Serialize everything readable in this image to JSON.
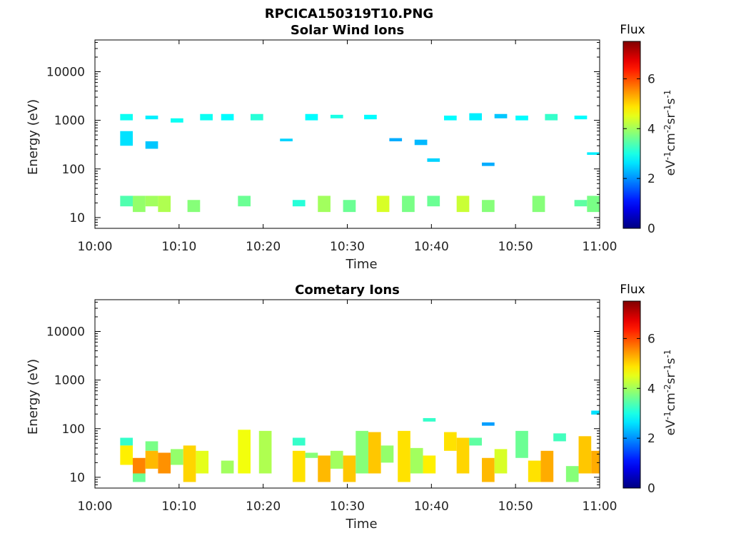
{
  "figure": {
    "title": "RPCICA150319T10.PNG"
  },
  "colorbar": {
    "label": "Flux",
    "unit_parts": [
      "eV",
      "-1",
      "cm",
      "-2",
      "sr",
      "-1",
      "s",
      "-1"
    ],
    "range": [
      0,
      7.5
    ],
    "ticks": [
      0,
      2,
      4,
      6
    ],
    "colormap": "jet"
  },
  "chart_data": [
    {
      "type": "heatmap",
      "title": "Solar Wind Ions",
      "xlabel": "Time",
      "ylabel": "Energy (eV)",
      "xlim": [
        "10:00",
        "11:00"
      ],
      "xticks": [
        "10:00",
        "10:10",
        "10:20",
        "10:30",
        "10:40",
        "10:50",
        "11:00"
      ],
      "ylim": [
        6,
        45000
      ],
      "yscale": "log",
      "yticks": [
        10,
        100,
        1000,
        10000
      ],
      "cells": [
        {
          "t": [
            "10:03",
            "10:04.5"
          ],
          "e": [
            1000,
            1350
          ],
          "v": 2.9
        },
        {
          "t": [
            "10:03",
            "10:04.5"
          ],
          "e": [
            300,
            600
          ],
          "v": 2.6
        },
        {
          "t": [
            "10:03",
            "10:04.5"
          ],
          "e": [
            17,
            28
          ],
          "v": 3.4
        },
        {
          "t": [
            "10:04.5",
            "10:06"
          ],
          "e": [
            13,
            28
          ],
          "v": 3.9
        },
        {
          "t": [
            "10:06",
            "10:07.5"
          ],
          "e": [
            1050,
            1250
          ],
          "v": 2.7
        },
        {
          "t": [
            "10:06",
            "10:07.5"
          ],
          "e": [
            260,
            370
          ],
          "v": 2.4
        },
        {
          "t": [
            "10:06",
            "10:07.5"
          ],
          "e": [
            17,
            28
          ],
          "v": 4.0
        },
        {
          "t": [
            "10:07.5",
            "10:09"
          ],
          "e": [
            13,
            28
          ],
          "v": 4.1
        },
        {
          "t": [
            "10:09",
            "10:10.5"
          ],
          "e": [
            900,
            1100
          ],
          "v": 2.9
        },
        {
          "t": [
            "10:11",
            "10:12.5"
          ],
          "e": [
            13,
            23
          ],
          "v": 3.8
        },
        {
          "t": [
            "10:12.5",
            "10:14"
          ],
          "e": [
            1000,
            1350
          ],
          "v": 2.9
        },
        {
          "t": [
            "10:15",
            "10:16.5"
          ],
          "e": [
            1000,
            1350
          ],
          "v": 2.8
        },
        {
          "t": [
            "10:17",
            "10:18.5"
          ],
          "e": [
            17,
            28
          ],
          "v": 3.6
        },
        {
          "t": [
            "10:18.5",
            "10:20"
          ],
          "e": [
            1000,
            1350
          ],
          "v": 3.1
        },
        {
          "t": [
            "10:22",
            "10:23.5"
          ],
          "e": [
            370,
            420
          ],
          "v": 2.5
        },
        {
          "t": [
            "10:23.5",
            "10:25"
          ],
          "e": [
            17,
            23
          ],
          "v": 3.1
        },
        {
          "t": [
            "10:25",
            "10:26.5"
          ],
          "e": [
            1000,
            1350
          ],
          "v": 2.8
        },
        {
          "t": [
            "10:26.5",
            "10:28"
          ],
          "e": [
            13,
            28
          ],
          "v": 4.0
        },
        {
          "t": [
            "10:28",
            "10:29.5"
          ],
          "e": [
            1100,
            1300
          ],
          "v": 3.0
        },
        {
          "t": [
            "10:29.5",
            "10:31"
          ],
          "e": [
            13,
            23
          ],
          "v": 3.6
        },
        {
          "t": [
            "10:32",
            "10:33.5"
          ],
          "e": [
            1050,
            1300
          ],
          "v": 2.8
        },
        {
          "t": [
            "10:33.5",
            "10:35"
          ],
          "e": [
            13,
            28
          ],
          "v": 4.4
        },
        {
          "t": [
            "10:35",
            "10:36.5"
          ],
          "e": [
            370,
            430
          ],
          "v": 2.2
        },
        {
          "t": [
            "10:36.5",
            "10:38"
          ],
          "e": [
            13,
            28
          ],
          "v": 3.7
        },
        {
          "t": [
            "10:38",
            "10:39.5"
          ],
          "e": [
            310,
            400
          ],
          "v": 2.3
        },
        {
          "t": [
            "10:39.5",
            "10:41"
          ],
          "e": [
            140,
            165
          ],
          "v": 2.5
        },
        {
          "t": [
            "10:39.5",
            "10:41"
          ],
          "e": [
            17,
            28
          ],
          "v": 3.6
        },
        {
          "t": [
            "10:41.5",
            "10:43"
          ],
          "e": [
            1000,
            1250
          ],
          "v": 2.8
        },
        {
          "t": [
            "10:43",
            "10:44.5"
          ],
          "e": [
            13,
            28
          ],
          "v": 4.3
        },
        {
          "t": [
            "10:44.5",
            "10:46"
          ],
          "e": [
            1000,
            1400
          ],
          "v": 2.7
        },
        {
          "t": [
            "10:46",
            "10:47.5"
          ],
          "e": [
            115,
            135
          ],
          "v": 2.2
        },
        {
          "t": [
            "10:46",
            "10:47.5"
          ],
          "e": [
            13,
            23
          ],
          "v": 3.8
        },
        {
          "t": [
            "10:47.5",
            "10:49"
          ],
          "e": [
            1100,
            1350
          ],
          "v": 2.4
        },
        {
          "t": [
            "10:50",
            "10:51.5"
          ],
          "e": [
            1000,
            1250
          ],
          "v": 2.8
        },
        {
          "t": [
            "10:52",
            "10:53.5"
          ],
          "e": [
            13,
            28
          ],
          "v": 3.8
        },
        {
          "t": [
            "10:53.5",
            "10:55"
          ],
          "e": [
            1000,
            1350
          ],
          "v": 3.2
        },
        {
          "t": [
            "10:57",
            "10:58.5"
          ],
          "e": [
            1050,
            1250
          ],
          "v": 2.8
        },
        {
          "t": [
            "10:57",
            "10:58.5"
          ],
          "e": [
            17,
            23
          ],
          "v": 3.5
        },
        {
          "t": [
            "10:58.5",
            "11:00"
          ],
          "e": [
            195,
            220
          ],
          "v": 2.7
        },
        {
          "t": [
            "10:58.5",
            "11:00"
          ],
          "e": [
            13,
            28
          ],
          "v": 3.7
        }
      ]
    },
    {
      "type": "heatmap",
      "title": "Cometary Ions",
      "xlabel": "Time",
      "ylabel": "Energy (eV)",
      "xlim": [
        "10:00",
        "11:00"
      ],
      "xticks": [
        "10:00",
        "10:10",
        "10:20",
        "10:30",
        "10:40",
        "10:50",
        "11:00"
      ],
      "ylim": [
        6,
        45000
      ],
      "yscale": "log",
      "yticks": [
        10,
        100,
        1000,
        10000
      ],
      "cells": [
        {
          "t": [
            "10:03",
            "10:04.5"
          ],
          "e": [
            45,
            65
          ],
          "v": 3.2
        },
        {
          "t": [
            "10:03",
            "10:04.5"
          ],
          "e": [
            18,
            45
          ],
          "v": 4.8
        },
        {
          "t": [
            "10:04.5",
            "10:06"
          ],
          "e": [
            8,
            12
          ],
          "v": 3.6
        },
        {
          "t": [
            "10:04.5",
            "10:06"
          ],
          "e": [
            12,
            25
          ],
          "v": 5.6
        },
        {
          "t": [
            "10:06",
            "10:07.5"
          ],
          "e": [
            35,
            55
          ],
          "v": 3.7
        },
        {
          "t": [
            "10:06",
            "10:07.5"
          ],
          "e": [
            15,
            35
          ],
          "v": 5.2
        },
        {
          "t": [
            "10:07.5",
            "10:09"
          ],
          "e": [
            12,
            32
          ],
          "v": 5.5
        },
        {
          "t": [
            "10:09",
            "10:10.5"
          ],
          "e": [
            18,
            38
          ],
          "v": 3.9
        },
        {
          "t": [
            "10:10.5",
            "10:12"
          ],
          "e": [
            8,
            45
          ],
          "v": 5.0
        },
        {
          "t": [
            "10:12",
            "10:13.5"
          ],
          "e": [
            12,
            35
          ],
          "v": 4.5
        },
        {
          "t": [
            "10:15",
            "10:16.5"
          ],
          "e": [
            12,
            22
          ],
          "v": 4.0
        },
        {
          "t": [
            "10:17",
            "10:18.5"
          ],
          "e": [
            12,
            95
          ],
          "v": 4.6
        },
        {
          "t": [
            "10:19.5",
            "10:21"
          ],
          "e": [
            12,
            90
          ],
          "v": 4.1
        },
        {
          "t": [
            "10:23.5",
            "10:25"
          ],
          "e": [
            45,
            65
          ],
          "v": 3.2
        },
        {
          "t": [
            "10:23.5",
            "10:25"
          ],
          "e": [
            8,
            35
          ],
          "v": 4.9
        },
        {
          "t": [
            "10:25",
            "10:26.5"
          ],
          "e": [
            25,
            32
          ],
          "v": 3.8
        },
        {
          "t": [
            "10:26.5",
            "10:28"
          ],
          "e": [
            8,
            28
          ],
          "v": 5.2
        },
        {
          "t": [
            "10:28",
            "10:29.5"
          ],
          "e": [
            15,
            35
          ],
          "v": 4.0
        },
        {
          "t": [
            "10:29.5",
            "10:31"
          ],
          "e": [
            8,
            28
          ],
          "v": 5.1
        },
        {
          "t": [
            "10:31",
            "10:32.5"
          ],
          "e": [
            12,
            90
          ],
          "v": 3.8
        },
        {
          "t": [
            "10:32.5",
            "10:34"
          ],
          "e": [
            12,
            85
          ],
          "v": 5.1
        },
        {
          "t": [
            "10:34",
            "10:35.5"
          ],
          "e": [
            20,
            45
          ],
          "v": 3.9
        },
        {
          "t": [
            "10:36",
            "10:37.5"
          ],
          "e": [
            8,
            90
          ],
          "v": 4.9
        },
        {
          "t": [
            "10:37.5",
            "10:39"
          ],
          "e": [
            12,
            40
          ],
          "v": 4.0
        },
        {
          "t": [
            "10:39",
            "10:40.5"
          ],
          "e": [
            140,
            165
          ],
          "v": 3.2
        },
        {
          "t": [
            "10:39",
            "10:40.5"
          ],
          "e": [
            12,
            28
          ],
          "v": 4.8
        },
        {
          "t": [
            "10:41.5",
            "10:43"
          ],
          "e": [
            35,
            85
          ],
          "v": 4.9
        },
        {
          "t": [
            "10:43",
            "10:44.5"
          ],
          "e": [
            12,
            65
          ],
          "v": 5.0
        },
        {
          "t": [
            "10:44.5",
            "10:46"
          ],
          "e": [
            45,
            65
          ],
          "v": 3.5
        },
        {
          "t": [
            "10:46",
            "10:47.5"
          ],
          "e": [
            115,
            135
          ],
          "v": 2.1
        },
        {
          "t": [
            "10:46",
            "10:47.5"
          ],
          "e": [
            8,
            25
          ],
          "v": 5.2
        },
        {
          "t": [
            "10:47.5",
            "10:49"
          ],
          "e": [
            12,
            38
          ],
          "v": 4.4
        },
        {
          "t": [
            "10:50",
            "10:51.5"
          ],
          "e": [
            25,
            90
          ],
          "v": 3.6
        },
        {
          "t": [
            "10:51.5",
            "10:53"
          ],
          "e": [
            8,
            22
          ],
          "v": 4.9
        },
        {
          "t": [
            "10:53",
            "10:54.5"
          ],
          "e": [
            8,
            35
          ],
          "v": 5.3
        },
        {
          "t": [
            "10:54.5",
            "10:56"
          ],
          "e": [
            55,
            80
          ],
          "v": 3.3
        },
        {
          "t": [
            "10:56",
            "10:57.5"
          ],
          "e": [
            8,
            17
          ],
          "v": 3.8
        },
        {
          "t": [
            "10:57.5",
            "10:59"
          ],
          "e": [
            12,
            70
          ],
          "v": 5.1
        },
        {
          "t": [
            "10:59",
            "11:00"
          ],
          "e": [
            195,
            235
          ],
          "v": 2.6
        },
        {
          "t": [
            "10:59",
            "11:00"
          ],
          "e": [
            12,
            35
          ],
          "v": 5.3
        }
      ]
    }
  ]
}
